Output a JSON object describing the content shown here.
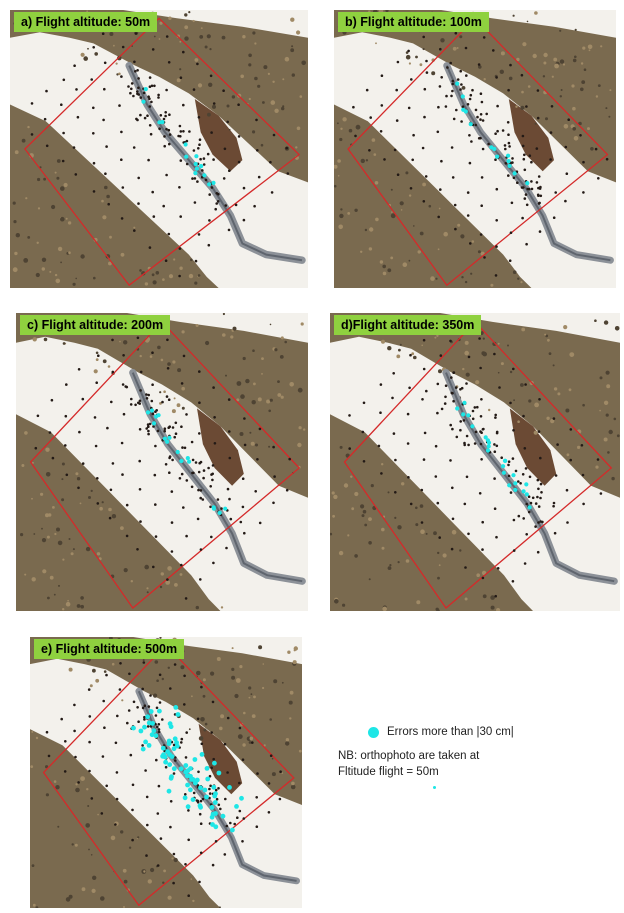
{
  "colors": {
    "title_bg": "#8fd13f",
    "error_point": "#1ee6e6",
    "survey_point": "#231a16",
    "boundary": "#d42a2a",
    "snow": "#f3f1ec",
    "vegetation": "#7a6a4f"
  },
  "panels": [
    {
      "id": "a",
      "title": "a) Flight altitude: 50m",
      "error_count": 14
    },
    {
      "id": "b",
      "title": "b) Flight altitude: 100m",
      "error_count": 13
    },
    {
      "id": "c",
      "title": "c) Flight altitude: 200m",
      "error_count": 16
    },
    {
      "id": "d",
      "title": "d)Flight altitude: 350m",
      "error_count": 22
    },
    {
      "id": "e",
      "title": "e) Flight altitude: 500m",
      "error_count": 80
    }
  ],
  "legend": {
    "error_label": "Errors more than |30 cm|",
    "note_line1": "NB: orthophoto are taken at",
    "note_line2": "Fltitude flight = 50m"
  }
}
